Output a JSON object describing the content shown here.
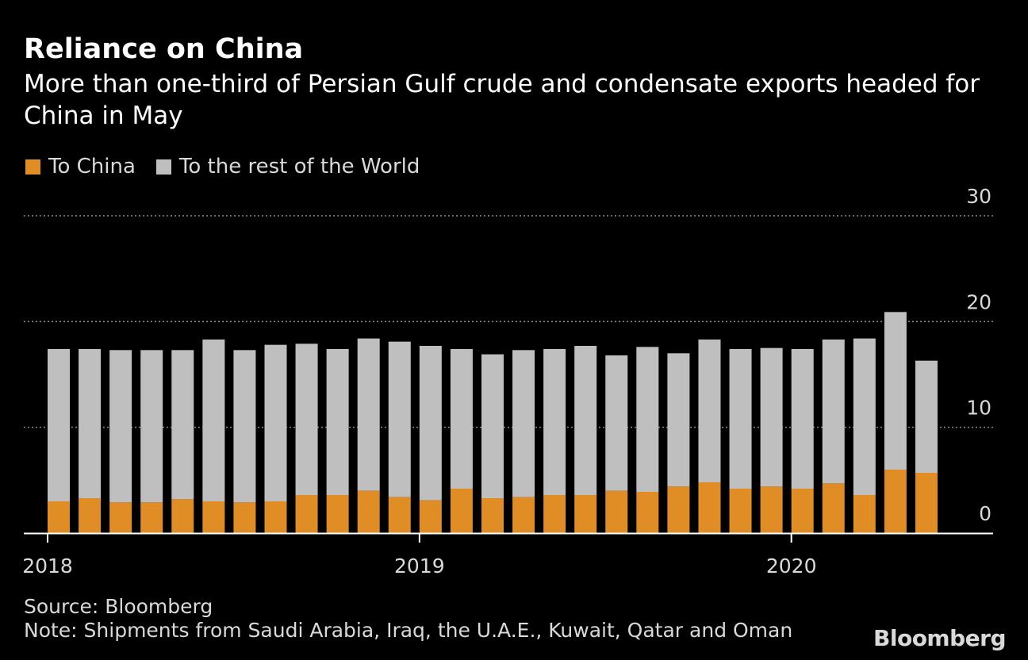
{
  "header": {
    "title": "Reliance on China",
    "subtitle": "More than one-third of Persian Gulf crude and condensate exports headed for China in May"
  },
  "legend": {
    "china": "To China",
    "rest": "To the rest of the World"
  },
  "colors": {
    "background": "#000000",
    "china": "#e08d25",
    "rest": "#bfbfbf",
    "grid": "#8c8c8c",
    "text": "#d9d9d9"
  },
  "footer": {
    "source": "Source: Bloomberg",
    "note": "Note: Shipments from Saudi Arabia, Iraq, the U.A.E., Kuwait, Qatar and Oman",
    "brand": "Bloomberg"
  },
  "chart_data": {
    "type": "bar",
    "stacked": true,
    "title": "Reliance on China",
    "xlabel": "",
    "ylabel": "",
    "ylim": [
      0,
      30
    ],
    "yticks": [
      0,
      10,
      20,
      30
    ],
    "grid": true,
    "legend_position": "top-left",
    "x_tick_labels": [
      {
        "label": "2018",
        "index": 0
      },
      {
        "label": "2019",
        "index": 12
      },
      {
        "label": "2020",
        "index": 24
      }
    ],
    "categories": [
      "Jan 2018",
      "Feb 2018",
      "Mar 2018",
      "Apr 2018",
      "May 2018",
      "Jun 2018",
      "Jul 2018",
      "Aug 2018",
      "Sep 2018",
      "Oct 2018",
      "Nov 2018",
      "Dec 2018",
      "Jan 2019",
      "Feb 2019",
      "Mar 2019",
      "Apr 2019",
      "May 2019",
      "Jun 2019",
      "Jul 2019",
      "Aug 2019",
      "Sep 2019",
      "Oct 2019",
      "Nov 2019",
      "Dec 2019",
      "Jan 2020",
      "Feb 2020",
      "Mar 2020",
      "Apr 2020",
      "May 2020"
    ],
    "series": [
      {
        "name": "To China",
        "values": [
          3.0,
          3.3,
          2.9,
          2.9,
          3.2,
          3.0,
          2.9,
          3.0,
          3.6,
          3.6,
          4.0,
          3.4,
          3.1,
          4.2,
          3.3,
          3.4,
          3.6,
          3.6,
          4.0,
          3.9,
          4.4,
          4.8,
          4.2,
          4.4,
          4.2,
          4.7,
          3.6,
          6.0,
          5.7
        ]
      },
      {
        "name": "To the rest of the World",
        "values": [
          14.4,
          14.1,
          14.4,
          14.4,
          14.1,
          15.3,
          14.4,
          14.8,
          14.3,
          13.8,
          14.4,
          14.7,
          14.6,
          13.2,
          13.6,
          13.9,
          13.8,
          14.1,
          12.8,
          13.7,
          12.6,
          13.5,
          13.2,
          13.1,
          13.2,
          13.6,
          14.8,
          14.9,
          10.6
        ]
      }
    ]
  }
}
